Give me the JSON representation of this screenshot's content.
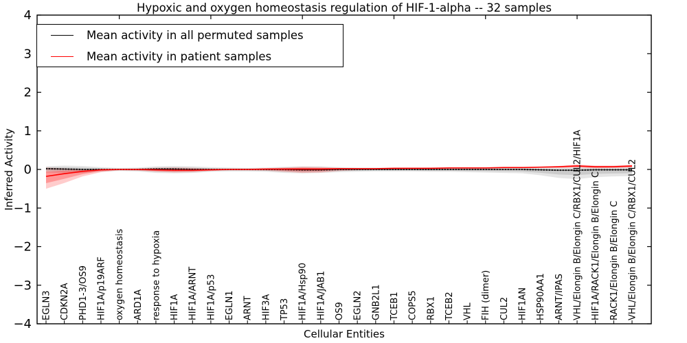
{
  "figure": {
    "title": "Hypoxic and oxygen homeostasis regulation of HIF-1-alpha -- 32 samples",
    "xlabel": "Cellular Entities",
    "ylabel": "Inferred Activity"
  },
  "legend": {
    "items": [
      {
        "label": "Mean activity in all permuted samples",
        "color": "#000000"
      },
      {
        "label": "Mean activity in patient samples",
        "color": "#ff0000"
      }
    ]
  },
  "chart_data": {
    "type": "line",
    "title": "Hypoxic and oxygen homeostasis regulation of HIF-1-alpha -- 32 samples",
    "xlabel": "Cellular Entities",
    "ylabel": "Inferred Activity",
    "ylim": [
      -4,
      4
    ],
    "yticks": [
      4,
      3,
      2,
      1,
      0,
      -1,
      -2,
      -3,
      -4
    ],
    "grid": false,
    "legend_position": "upper left",
    "x_tick_label_rotation": 90,
    "top_tick_indices": [
      4,
      9,
      14,
      19,
      24,
      29
    ],
    "categories": [
      "EGLN3",
      "CDKN2A",
      "PHD1-3/OS9",
      "HIF1A/p19ARF",
      "oxygen homeostasis",
      "ARD1A",
      "response to hypoxia",
      "HIF1A",
      "HIF1A/ARNT",
      "HIF1A/p53",
      "EGLN1",
      "ARNT",
      "HIF3A",
      "TP53",
      "HIF1A/Hsp90",
      "HIF1A/JAB1",
      "OS9",
      "EGLN2",
      "GNB2L1",
      "TCEB1",
      "COPS5",
      "RBX1",
      "TCEB2",
      "VHL",
      "FIH (dimer)",
      "CUL2",
      "HIF1AN",
      "HSP90AA1",
      "ARNT/IPAS",
      "VHL/Elongin B/Elongin C/RBX1/CUL2/HIF1A",
      "HIF1A/RACK1/Elongin B/Elongin C",
      "RACK1/Elongin B/Elongin C",
      "VHL/Elongin B/Elongin C/RBX1/CUL2"
    ],
    "series": [
      {
        "name": "Mean activity in all permuted samples",
        "color": "#000000",
        "line_style": "solid-with-dot-markers",
        "band_color": "#888888",
        "band_opacity": 0.22,
        "values": [
          0.02,
          0.01,
          0.0,
          0.0,
          0.0,
          0.0,
          0.01,
          0.01,
          0.0,
          0.0,
          0.0,
          0.0,
          0.0,
          0.0,
          -0.01,
          -0.01,
          0.0,
          0.0,
          0.0,
          0.0,
          0.0,
          0.0,
          0.0,
          0.0,
          0.0,
          0.0,
          0.0,
          -0.01,
          -0.02,
          -0.02,
          -0.01,
          -0.01,
          -0.01
        ],
        "band_upper": [
          0.08,
          0.1,
          0.09,
          0.06,
          0.04,
          0.05,
          0.08,
          0.09,
          0.08,
          0.06,
          0.05,
          0.04,
          0.05,
          0.07,
          0.08,
          0.08,
          0.06,
          0.05,
          0.05,
          0.04,
          0.04,
          0.05,
          0.05,
          0.05,
          0.05,
          0.05,
          0.05,
          0.05,
          0.05,
          0.06,
          0.06,
          0.06,
          0.07
        ],
        "band_lower": [
          -0.08,
          -0.1,
          -0.09,
          -0.06,
          -0.04,
          -0.05,
          -0.09,
          -0.1,
          -0.09,
          -0.06,
          -0.05,
          -0.05,
          -0.06,
          -0.09,
          -0.1,
          -0.09,
          -0.07,
          -0.06,
          -0.05,
          -0.05,
          -0.05,
          -0.06,
          -0.06,
          -0.07,
          -0.08,
          -0.09,
          -0.1,
          -0.15,
          -0.22,
          -0.25,
          -0.2,
          -0.18,
          -0.17
        ]
      },
      {
        "name": "Mean activity in patient samples",
        "color": "#ff0000",
        "line_style": "solid",
        "band_color": "#ff0000",
        "band_opacity": 0.2,
        "values": [
          -0.18,
          -0.11,
          -0.05,
          -0.01,
          0.0,
          0.0,
          -0.01,
          -0.02,
          -0.02,
          -0.01,
          0.0,
          0.0,
          0.01,
          0.01,
          0.01,
          0.01,
          0.02,
          0.02,
          0.02,
          0.03,
          0.03,
          0.03,
          0.04,
          0.04,
          0.04,
          0.05,
          0.05,
          0.06,
          0.07,
          0.09,
          0.07,
          0.07,
          0.09
        ],
        "band_upper": [
          0.05,
          0.03,
          0.01,
          0.0,
          0.01,
          0.02,
          0.04,
          0.05,
          0.04,
          0.02,
          0.02,
          0.02,
          0.03,
          0.05,
          0.07,
          0.06,
          0.04,
          0.03,
          0.03,
          0.04,
          0.04,
          0.04,
          0.05,
          0.05,
          0.05,
          0.06,
          0.06,
          0.07,
          0.09,
          0.13,
          0.1,
          0.1,
          0.12
        ],
        "band_lower": [
          -0.5,
          -0.35,
          -0.18,
          -0.07,
          -0.02,
          -0.03,
          -0.06,
          -0.08,
          -0.07,
          -0.04,
          -0.02,
          -0.02,
          -0.03,
          -0.06,
          -0.09,
          -0.08,
          -0.04,
          -0.02,
          -0.01,
          0.0,
          0.01,
          0.01,
          0.02,
          0.02,
          0.02,
          0.03,
          0.03,
          0.04,
          0.04,
          0.05,
          0.03,
          0.04,
          0.05
        ]
      }
    ]
  }
}
